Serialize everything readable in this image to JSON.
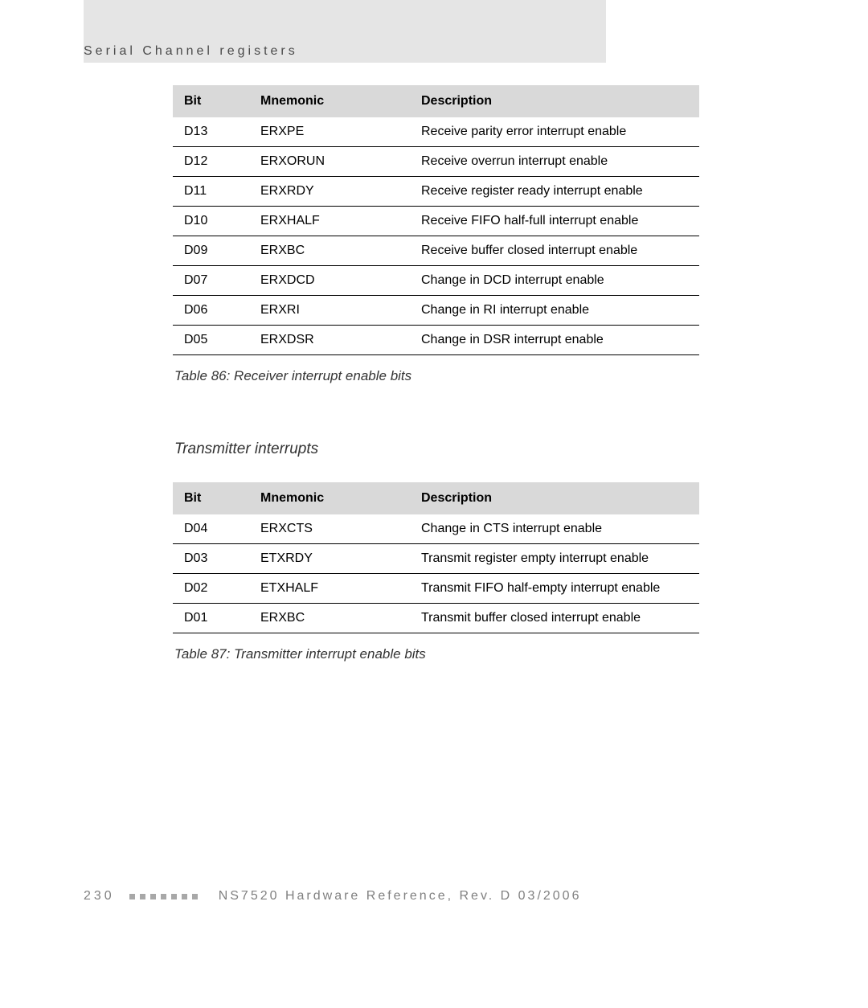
{
  "section_heading": "Serial Channel registers",
  "table1": {
    "headers": {
      "bit": "Bit",
      "mnemonic": "Mnemonic",
      "description": "Description"
    },
    "rows": [
      {
        "bit": "D13",
        "mnemonic": "ERXPE",
        "description": "Receive parity error interrupt enable"
      },
      {
        "bit": "D12",
        "mnemonic": "ERXORUN",
        "description": "Receive overrun interrupt enable"
      },
      {
        "bit": "D11",
        "mnemonic": "ERXRDY",
        "description": "Receive register ready interrupt enable"
      },
      {
        "bit": "D10",
        "mnemonic": "ERXHALF",
        "description": "Receive FIFO half-full interrupt enable"
      },
      {
        "bit": "D09",
        "mnemonic": "ERXBC",
        "description": "Receive buffer closed interrupt enable"
      },
      {
        "bit": "D07",
        "mnemonic": "ERXDCD",
        "description": "Change in DCD interrupt enable"
      },
      {
        "bit": "D06",
        "mnemonic": "ERXRI",
        "description": "Change in RI interrupt enable"
      },
      {
        "bit": "D05",
        "mnemonic": "ERXDSR",
        "description": "Change in DSR interrupt enable"
      }
    ],
    "caption": "Table 86: Receiver interrupt enable bits"
  },
  "subsection_heading": "Transmitter interrupts",
  "table2": {
    "headers": {
      "bit": "Bit",
      "mnemonic": "Mnemonic",
      "description": "Description"
    },
    "rows": [
      {
        "bit": "D04",
        "mnemonic": "ERXCTS",
        "description": "Change in CTS interrupt enable"
      },
      {
        "bit": "D03",
        "mnemonic": "ETXRDY",
        "description": "Transmit register empty interrupt enable"
      },
      {
        "bit": "D02",
        "mnemonic": "ETXHALF",
        "description": "Transmit FIFO half-empty interrupt enable"
      },
      {
        "bit": "D01",
        "mnemonic": "ERXBC",
        "description": "Transmit buffer closed interrupt enable"
      }
    ],
    "caption": "Table 87: Transmitter interrupt enable bits"
  },
  "footer": {
    "page_number": "230",
    "square_count": 7,
    "text": "NS7520 Hardware Reference, Rev. D 03/2006"
  },
  "colors": {
    "header_bg": "#d9d9d9",
    "border": "#000000",
    "text": "#000000",
    "caption": "#333333",
    "footer_text": "#808080",
    "footer_square": "#a8a8a8",
    "top_band": "#e5e5e5"
  }
}
